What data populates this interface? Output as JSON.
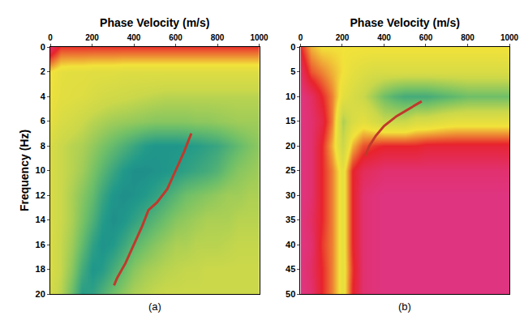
{
  "chart_data": [
    {
      "type": "heatmap",
      "label": "(a)",
      "x_title": "Phase Velocity (m/s)",
      "y_title": "Frequency (Hz)",
      "x": [
        0,
        50,
        100,
        150,
        200,
        250,
        300,
        350,
        400,
        450,
        500,
        550,
        600,
        650,
        700,
        750,
        800,
        850,
        900,
        950,
        1000
      ],
      "y": [
        0,
        2,
        4,
        6,
        8,
        10,
        12,
        14,
        16,
        18,
        20
      ],
      "cells": [
        [
          0.1,
          0.22,
          0.22,
          0.22,
          0.22,
          0.22,
          0.22,
          0.22,
          0.22,
          0.22,
          0.22,
          0.22,
          0.22,
          0.22,
          0.22,
          0.22,
          0.22,
          0.22,
          0.22,
          0.22,
          0.22
        ],
        [
          0.4,
          0.45,
          0.46,
          0.46,
          0.47,
          0.47,
          0.47,
          0.48,
          0.48,
          0.48,
          0.48,
          0.48,
          0.48,
          0.48,
          0.48,
          0.48,
          0.48,
          0.48,
          0.48,
          0.48,
          0.48
        ],
        [
          0.42,
          0.46,
          0.47,
          0.48,
          0.5,
          0.52,
          0.53,
          0.54,
          0.55,
          0.56,
          0.57,
          0.58,
          0.58,
          0.58,
          0.58,
          0.58,
          0.58,
          0.58,
          0.58,
          0.58,
          0.58
        ],
        [
          0.45,
          0.5,
          0.52,
          0.55,
          0.58,
          0.6,
          0.62,
          0.63,
          0.64,
          0.65,
          0.66,
          0.66,
          0.66,
          0.66,
          0.65,
          0.65,
          0.64,
          0.63,
          0.62,
          0.62,
          0.62
        ],
        [
          0.5,
          0.55,
          0.58,
          0.6,
          0.64,
          0.68,
          0.72,
          0.76,
          0.8,
          0.84,
          0.86,
          0.86,
          0.86,
          0.85,
          0.84,
          0.82,
          0.8,
          0.76,
          0.72,
          0.68,
          0.65
        ],
        [
          0.5,
          0.55,
          0.58,
          0.62,
          0.68,
          0.74,
          0.8,
          0.85,
          0.88,
          0.88,
          0.87,
          0.86,
          0.84,
          0.82,
          0.8,
          0.78,
          0.75,
          0.7,
          0.66,
          0.64,
          0.62
        ],
        [
          0.5,
          0.55,
          0.6,
          0.66,
          0.72,
          0.8,
          0.86,
          0.88,
          0.87,
          0.85,
          0.82,
          0.78,
          0.74,
          0.7,
          0.68,
          0.66,
          0.64,
          0.62,
          0.62,
          0.6,
          0.6
        ],
        [
          0.5,
          0.55,
          0.6,
          0.68,
          0.76,
          0.84,
          0.88,
          0.86,
          0.82,
          0.78,
          0.74,
          0.7,
          0.66,
          0.64,
          0.62,
          0.6,
          0.6,
          0.6,
          0.58,
          0.58,
          0.58
        ],
        [
          0.5,
          0.56,
          0.62,
          0.72,
          0.82,
          0.87,
          0.85,
          0.8,
          0.74,
          0.7,
          0.66,
          0.63,
          0.6,
          0.6,
          0.58,
          0.58,
          0.58,
          0.57,
          0.56,
          0.56,
          0.56
        ],
        [
          0.5,
          0.56,
          0.65,
          0.78,
          0.86,
          0.84,
          0.78,
          0.72,
          0.66,
          0.62,
          0.6,
          0.58,
          0.57,
          0.56,
          0.56,
          0.55,
          0.55,
          0.55,
          0.55,
          0.55,
          0.55
        ],
        [
          0.52,
          0.58,
          0.7,
          0.84,
          0.82,
          0.76,
          0.7,
          0.65,
          0.6,
          0.58,
          0.56,
          0.55,
          0.55,
          0.55,
          0.55,
          0.55,
          0.55,
          0.55,
          0.55,
          0.55,
          0.55
        ]
      ],
      "zlim": [
        0,
        1
      ],
      "xlim": [
        0,
        1000
      ],
      "xticks": [
        0,
        200,
        400,
        600,
        800,
        1000
      ],
      "ylim": [
        20,
        0
      ],
      "yticks": [
        0,
        2,
        4,
        6,
        8,
        10,
        12,
        14,
        16,
        18,
        20
      ],
      "series": [
        {
          "type": "line",
          "color": "#c0392b",
          "x": [
            675,
            640,
            600,
            560,
            510,
            470,
            440,
            400,
            360,
            320,
            305
          ],
          "values": [
            7,
            8.5,
            10,
            11.5,
            12.6,
            13.2,
            14.5,
            16,
            17.5,
            18.7,
            19.3
          ]
        }
      ]
    },
    {
      "type": "heatmap",
      "label": "(b)",
      "x_title": "Phase Velocity (m/s)",
      "x": [
        0,
        50,
        100,
        150,
        200,
        250,
        300,
        350,
        400,
        450,
        500,
        550,
        600,
        650,
        700,
        750,
        800,
        850,
        900,
        950,
        1000
      ],
      "y": [
        0,
        5,
        10,
        15,
        20,
        25,
        30,
        35,
        40,
        45,
        50
      ],
      "cells": [
        [
          0.2,
          0.35,
          0.4,
          0.4,
          0.4,
          0.4,
          0.4,
          0.4,
          0.4,
          0.4,
          0.4,
          0.4,
          0.4,
          0.4,
          0.4,
          0.4,
          0.4,
          0.4,
          0.4,
          0.4,
          0.4
        ],
        [
          0.1,
          0.25,
          0.3,
          0.35,
          0.4,
          0.45,
          0.48,
          0.5,
          0.5,
          0.5,
          0.5,
          0.5,
          0.5,
          0.5,
          0.5,
          0.5,
          0.5,
          0.5,
          0.5,
          0.5,
          0.5
        ],
        [
          0.05,
          0.1,
          0.2,
          0.3,
          0.45,
          0.5,
          0.55,
          0.62,
          0.7,
          0.75,
          0.78,
          0.78,
          0.78,
          0.76,
          0.74,
          0.72,
          0.7,
          0.7,
          0.7,
          0.7,
          0.7
        ],
        [
          0.05,
          0.08,
          0.15,
          0.3,
          0.6,
          0.5,
          0.45,
          0.5,
          0.55,
          0.55,
          0.55,
          0.5,
          0.5,
          0.48,
          0.46,
          0.45,
          0.45,
          0.45,
          0.45,
          0.45,
          0.45
        ],
        [
          0.05,
          0.08,
          0.2,
          0.35,
          0.55,
          0.35,
          0.25,
          0.22,
          0.2,
          0.2,
          0.2,
          0.2,
          0.18,
          0.18,
          0.18,
          0.18,
          0.18,
          0.18,
          0.18,
          0.18,
          0.18
        ],
        [
          0.05,
          0.08,
          0.2,
          0.3,
          0.45,
          0.2,
          0.12,
          0.1,
          0.08,
          0.08,
          0.08,
          0.08,
          0.08,
          0.08,
          0.08,
          0.08,
          0.08,
          0.08,
          0.08,
          0.08,
          0.08
        ],
        [
          0.05,
          0.08,
          0.2,
          0.3,
          0.45,
          0.2,
          0.08,
          0.06,
          0.05,
          0.05,
          0.05,
          0.05,
          0.05,
          0.05,
          0.05,
          0.05,
          0.05,
          0.05,
          0.05,
          0.05,
          0.05
        ],
        [
          0.05,
          0.1,
          0.2,
          0.3,
          0.45,
          0.2,
          0.08,
          0.06,
          0.05,
          0.05,
          0.05,
          0.05,
          0.05,
          0.05,
          0.05,
          0.05,
          0.05,
          0.05,
          0.05,
          0.05,
          0.05
        ],
        [
          0.05,
          0.08,
          0.22,
          0.3,
          0.45,
          0.2,
          0.08,
          0.06,
          0.05,
          0.05,
          0.05,
          0.05,
          0.05,
          0.05,
          0.05,
          0.05,
          0.05,
          0.05,
          0.05,
          0.05,
          0.05
        ],
        [
          0.05,
          0.1,
          0.2,
          0.3,
          0.45,
          0.22,
          0.08,
          0.06,
          0.05,
          0.05,
          0.05,
          0.05,
          0.05,
          0.05,
          0.05,
          0.05,
          0.05,
          0.05,
          0.05,
          0.05,
          0.05
        ],
        [
          0.05,
          0.08,
          0.2,
          0.3,
          0.45,
          0.2,
          0.08,
          0.06,
          0.05,
          0.05,
          0.05,
          0.05,
          0.05,
          0.05,
          0.05,
          0.05,
          0.05,
          0.05,
          0.05,
          0.05,
          0.05
        ]
      ],
      "zlim": [
        0,
        1
      ],
      "xlim": [
        0,
        1000
      ],
      "xticks": [
        0,
        200,
        400,
        600,
        800,
        1000
      ],
      "ylim": [
        50,
        0
      ],
      "yticks": [
        0,
        5,
        10,
        15,
        20,
        25,
        30,
        35,
        40,
        45,
        50
      ],
      "series": [
        {
          "type": "line",
          "color": "#c0392b",
          "x": [
            580,
            520,
            460,
            400,
            360,
            330,
            310
          ],
          "values": [
            11,
            12.5,
            14,
            16,
            18,
            20,
            22
          ]
        }
      ]
    }
  ]
}
